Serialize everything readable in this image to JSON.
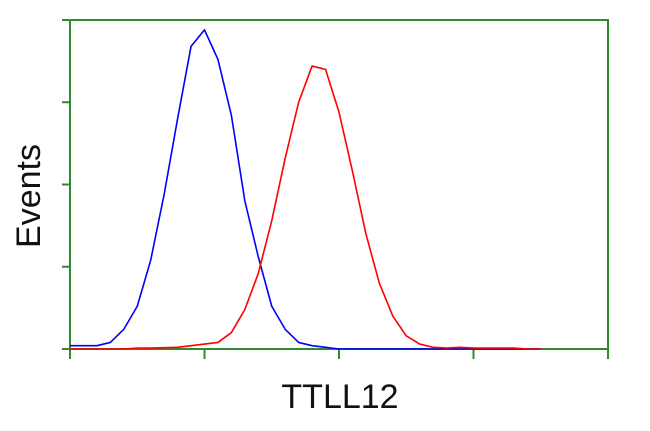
{
  "chart_data": {
    "type": "line",
    "x_label": "TTLL12",
    "y_label": "Events",
    "x": [
      0,
      0.1,
      0.2,
      0.3,
      0.4,
      0.5,
      0.6,
      0.7,
      0.8,
      0.9,
      1.0,
      1.1,
      1.2,
      1.3,
      1.4,
      1.5,
      1.6,
      1.7,
      1.8,
      1.9,
      2.0,
      2.1,
      2.2,
      2.3,
      2.4,
      2.5,
      2.6,
      2.7,
      2.8,
      2.9,
      3.0,
      3.1,
      3.2,
      3.3,
      3.4,
      3.5
    ],
    "series": [
      {
        "color": "#0000ff",
        "values": [
          1,
          1,
          1,
          2,
          6,
          13,
          27,
          47,
          70,
          92,
          97,
          88,
          71,
          45,
          28,
          13,
          6,
          2,
          1,
          0.5,
          0,
          0,
          0,
          0,
          0,
          0,
          0,
          0,
          0,
          0,
          0,
          0,
          0,
          0,
          0,
          0
        ]
      },
      {
        "color": "#ff0000",
        "values": [
          0,
          0,
          0,
          0,
          0,
          0.3,
          0.3,
          0.4,
          0.5,
          1,
          1.5,
          2,
          5,
          12,
          23,
          39,
          58,
          75,
          86,
          85,
          72,
          54,
          35,
          20,
          10,
          4,
          1.5,
          0.5,
          0.3,
          0.5,
          0.3,
          0.3,
          0.3,
          0.3,
          0,
          0
        ]
      }
    ],
    "xlim": [
      0,
      4
    ],
    "xticks": [
      0,
      1,
      2,
      3,
      4
    ],
    "ylim": [
      0,
      100
    ],
    "yticks": [
      0,
      25,
      50,
      75,
      100
    ],
    "frame_color": "#2e8b2e"
  }
}
